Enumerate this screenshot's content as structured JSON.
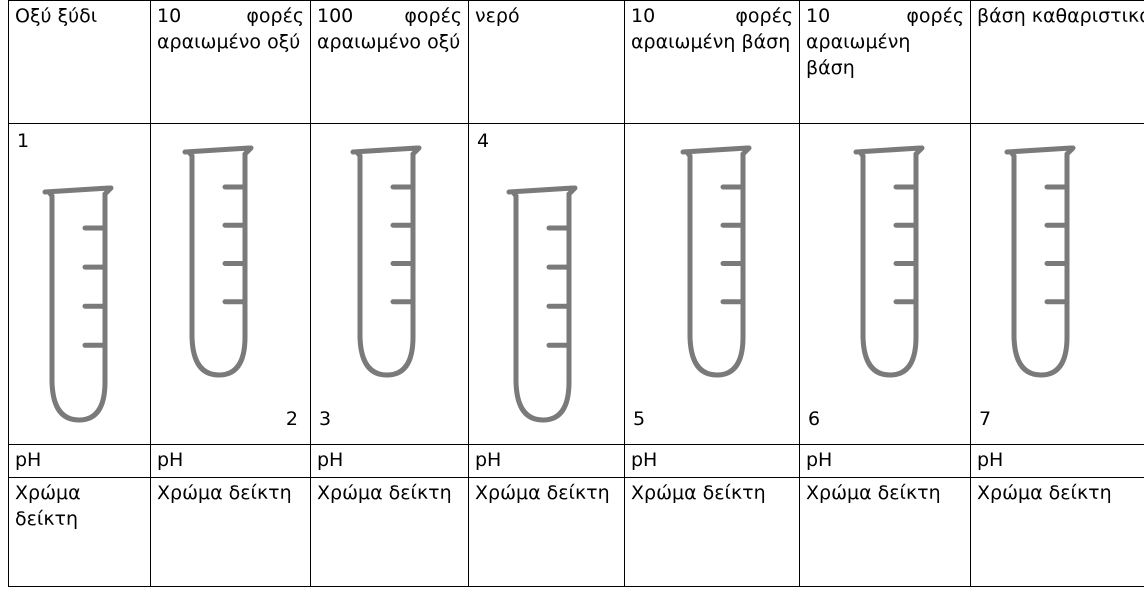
{
  "table": {
    "headers": [
      "Οξύ ξύδι",
      "10 φορές αραιωμένο οξύ",
      "100 φορές αραιωμένο οξύ",
      "νερό",
      "10 φορές αραιωμένη βάση",
      "10 φορές αραιωμένη βάση",
      "βάση καθαριστικό"
    ],
    "tube_numbers": [
      "1",
      "2",
      "3",
      "4",
      "5",
      "6",
      "7"
    ],
    "ph_labels": [
      "pH",
      "pH",
      "pH",
      "pH",
      "pH",
      "pH",
      "pH"
    ],
    "color_labels": [
      "Χρώμα δείκτη",
      "Χρώμα δείκτη",
      "Χρώμα δείκτη",
      "Χρώμα δείκτη",
      "Χρώμα δείκτη",
      "Χρώμα δείκτη",
      "Χρώμα δείκτη"
    ]
  }
}
